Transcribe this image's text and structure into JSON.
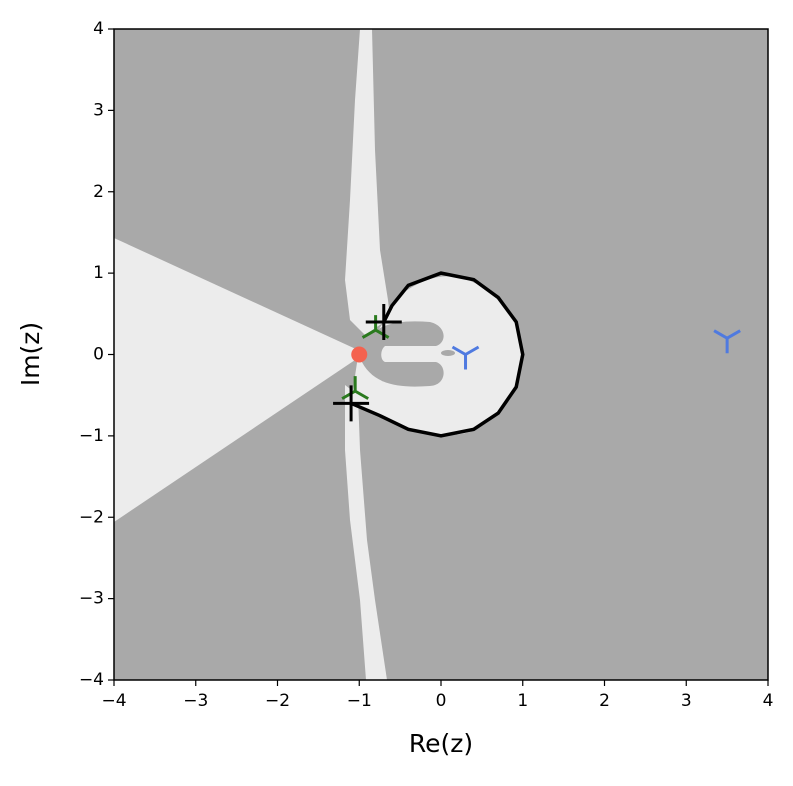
{
  "chart_data": {
    "type": "scatter",
    "x_label": "Re(z)",
    "y_label": "Im(z)",
    "xlim": [
      -4,
      4
    ],
    "ylim": [
      -4,
      4
    ],
    "xticks": [
      {
        "value": -4,
        "label": "−4"
      },
      {
        "value": -3,
        "label": "−3"
      },
      {
        "value": -2,
        "label": "−2"
      },
      {
        "value": -1,
        "label": "−1"
      },
      0,
      1,
      2,
      3,
      4
    ],
    "yticks": [
      {
        "value": -4,
        "label": "−4"
      },
      {
        "value": -3,
        "label": "−3"
      },
      {
        "value": -2,
        "label": "−2"
      },
      {
        "value": -1,
        "label": "−1"
      },
      0,
      1,
      2,
      3,
      4
    ],
    "series": [
      {
        "marker": "line",
        "color": "#000000",
        "x": [
          -0.7,
          -0.6,
          -0.4,
          0,
          0.4,
          0.7,
          0.92,
          1.0,
          0.92,
          0.7,
          0.4,
          0,
          -0.4,
          -0.75,
          -1.1
        ],
        "values": [
          0.4,
          0.6,
          0.85,
          1,
          0.92,
          0.7,
          0.4,
          0,
          -0.4,
          -0.72,
          -0.92,
          -1,
          -0.92,
          -0.75,
          -0.6
        ]
      },
      {
        "marker": "dot",
        "color": "#f4624f",
        "x": [
          -1
        ],
        "values": [
          0
        ]
      },
      {
        "marker": "tri_down",
        "color": "#4f7ae0",
        "x": [
          0.3,
          3.5
        ],
        "values": [
          0,
          0.2
        ]
      },
      {
        "marker": "tri_up",
        "color": "#2a7a1e",
        "x": [
          -0.8,
          -1.05
        ],
        "values": [
          0.3,
          -0.45
        ]
      },
      {
        "marker": "plus",
        "color": "#000000",
        "x": [
          -0.7,
          -1.1
        ],
        "values": [
          0.4,
          -0.6
        ]
      }
    ]
  }
}
